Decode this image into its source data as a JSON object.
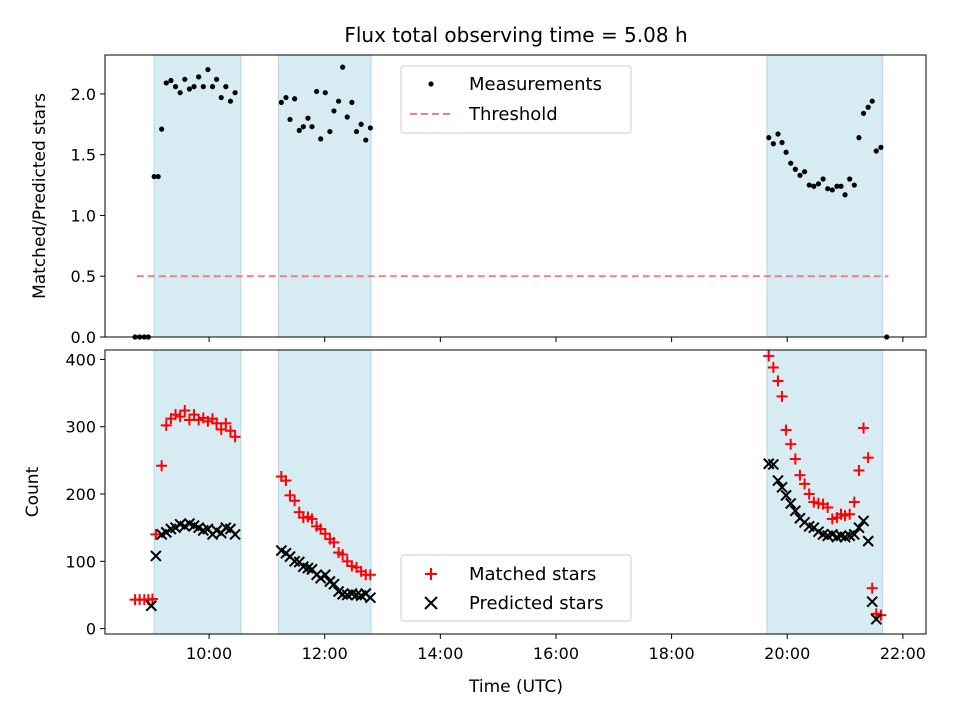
{
  "chart_data": {
    "title": "Flux total observing time = 5.08 h",
    "xlabel": "Time (UTC)",
    "x_ticks": [
      10,
      12,
      14,
      16,
      18,
      20,
      22
    ],
    "x_tick_labels": [
      "10:00",
      "12:00",
      "14:00",
      "16:00",
      "18:00",
      "20:00",
      "22:00"
    ],
    "xlim": [
      8.2,
      22.4
    ],
    "shaded_intervals": [
      [
        9.05,
        10.55
      ],
      [
        11.2,
        12.8
      ],
      [
        19.65,
        21.65
      ]
    ],
    "top": {
      "type": "scatter",
      "ylabel": "Matched/Predicted stars",
      "ylim": [
        0,
        2.32
      ],
      "y_ticks": [
        0,
        0.5,
        1.0,
        1.5,
        2.0
      ],
      "y_tick_labels": [
        "0.0",
        "0.5",
        "1.0",
        "1.5",
        "2.0"
      ],
      "legend": [
        "Measurements",
        "Threshold"
      ],
      "threshold": {
        "value": 0.5,
        "x_range": [
          8.75,
          21.75
        ],
        "color": "#f08080"
      },
      "measurements": [
        [
          8.72,
          0.0
        ],
        [
          8.8,
          0.0
        ],
        [
          8.88,
          0.0
        ],
        [
          8.95,
          0.0
        ],
        [
          9.05,
          1.32
        ],
        [
          9.12,
          1.32
        ],
        [
          9.18,
          1.71
        ],
        [
          9.26,
          2.09
        ],
        [
          9.34,
          2.11
        ],
        [
          9.42,
          2.06
        ],
        [
          9.5,
          2.01
        ],
        [
          9.58,
          2.12
        ],
        [
          9.66,
          2.04
        ],
        [
          9.74,
          2.06
        ],
        [
          9.82,
          2.14
        ],
        [
          9.9,
          2.06
        ],
        [
          9.98,
          2.2
        ],
        [
          10.06,
          2.06
        ],
        [
          10.13,
          2.12
        ],
        [
          10.21,
          1.97
        ],
        [
          10.29,
          2.06
        ],
        [
          10.37,
          1.94
        ],
        [
          10.45,
          2.01
        ],
        [
          11.25,
          1.93
        ],
        [
          11.33,
          1.97
        ],
        [
          11.4,
          1.79
        ],
        [
          11.48,
          1.96
        ],
        [
          11.56,
          1.7
        ],
        [
          11.63,
          1.73
        ],
        [
          11.71,
          1.8
        ],
        [
          11.78,
          1.73
        ],
        [
          11.86,
          2.02
        ],
        [
          11.93,
          1.63
        ],
        [
          12.01,
          2.01
        ],
        [
          12.09,
          1.69
        ],
        [
          12.16,
          1.86
        ],
        [
          12.24,
          1.94
        ],
        [
          12.31,
          2.22
        ],
        [
          12.39,
          1.81
        ],
        [
          12.47,
          1.93
        ],
        [
          12.55,
          1.69
        ],
        [
          12.63,
          1.75
        ],
        [
          12.71,
          1.62
        ],
        [
          12.79,
          1.72
        ],
        [
          19.68,
          1.64
        ],
        [
          19.76,
          1.59
        ],
        [
          19.84,
          1.67
        ],
        [
          19.91,
          1.6
        ],
        [
          19.98,
          1.52
        ],
        [
          20.06,
          1.43
        ],
        [
          20.14,
          1.38
        ],
        [
          20.22,
          1.33
        ],
        [
          20.3,
          1.36
        ],
        [
          20.38,
          1.25
        ],
        [
          20.46,
          1.24
        ],
        [
          20.54,
          1.26
        ],
        [
          20.62,
          1.3
        ],
        [
          20.7,
          1.22
        ],
        [
          20.78,
          1.21
        ],
        [
          20.86,
          1.24
        ],
        [
          20.93,
          1.24
        ],
        [
          21.0,
          1.17
        ],
        [
          21.08,
          1.3
        ],
        [
          21.16,
          1.25
        ],
        [
          21.24,
          1.64
        ],
        [
          21.32,
          1.84
        ],
        [
          21.4,
          1.89
        ],
        [
          21.47,
          1.94
        ],
        [
          21.54,
          1.53
        ],
        [
          21.62,
          1.56
        ],
        [
          21.72,
          0.0
        ]
      ]
    },
    "bottom": {
      "type": "scatter",
      "ylabel": "Count",
      "ylim": [
        -8,
        414
      ],
      "y_ticks": [
        0,
        100,
        200,
        300,
        400
      ],
      "y_tick_labels": [
        "0",
        "100",
        "200",
        "300",
        "400"
      ],
      "legend": [
        "Matched stars",
        "Predicted stars"
      ],
      "series": [
        {
          "name": "Matched stars",
          "marker": "plus",
          "color": "#ff0000",
          "points": [
            [
              8.72,
              43
            ],
            [
              8.8,
              43
            ],
            [
              8.88,
              43
            ],
            [
              8.95,
              43
            ],
            [
              9.02,
              44
            ],
            [
              9.08,
              140
            ],
            [
              9.18,
              242
            ],
            [
              9.26,
              302
            ],
            [
              9.34,
              312
            ],
            [
              9.42,
              318
            ],
            [
              9.5,
              315
            ],
            [
              9.58,
              324
            ],
            [
              9.66,
              310
            ],
            [
              9.74,
              318
            ],
            [
              9.82,
              310
            ],
            [
              9.9,
              313
            ],
            [
              9.98,
              308
            ],
            [
              10.06,
              312
            ],
            [
              10.13,
              305
            ],
            [
              10.21,
              296
            ],
            [
              10.29,
              305
            ],
            [
              10.37,
              294
            ],
            [
              10.45,
              285
            ],
            [
              11.25,
              226
            ],
            [
              11.33,
              220
            ],
            [
              11.4,
              198
            ],
            [
              11.48,
              190
            ],
            [
              11.56,
              173
            ],
            [
              11.63,
              165
            ],
            [
              11.71,
              166
            ],
            [
              11.78,
              163
            ],
            [
              11.86,
              152
            ],
            [
              11.93,
              148
            ],
            [
              12.01,
              141
            ],
            [
              12.09,
              133
            ],
            [
              12.16,
              128
            ],
            [
              12.24,
              113
            ],
            [
              12.31,
              110
            ],
            [
              12.39,
              100
            ],
            [
              12.47,
              93
            ],
            [
              12.55,
              91
            ],
            [
              12.63,
              85
            ],
            [
              12.71,
              80
            ],
            [
              12.79,
              80
            ],
            [
              19.68,
              405
            ],
            [
              19.76,
              388
            ],
            [
              19.84,
              368
            ],
            [
              19.91,
              345
            ],
            [
              19.98,
              295
            ],
            [
              20.06,
              274
            ],
            [
              20.14,
              252
            ],
            [
              20.22,
              228
            ],
            [
              20.3,
              215
            ],
            [
              20.38,
              200
            ],
            [
              20.46,
              188
            ],
            [
              20.54,
              186
            ],
            [
              20.62,
              185
            ],
            [
              20.7,
              180
            ],
            [
              20.78,
              163
            ],
            [
              20.86,
              165
            ],
            [
              20.93,
              170
            ],
            [
              21.0,
              168
            ],
            [
              21.08,
              170
            ],
            [
              21.16,
              188
            ],
            [
              21.24,
              235
            ],
            [
              21.32,
              298
            ],
            [
              21.4,
              254
            ],
            [
              21.47,
              60
            ],
            [
              21.54,
              22
            ],
            [
              21.62,
              20
            ]
          ]
        },
        {
          "name": "Predicted stars",
          "marker": "x",
          "color": "#000000",
          "points": [
            [
              9.0,
              34
            ],
            [
              9.08,
              108
            ],
            [
              9.18,
              140
            ],
            [
              9.26,
              143
            ],
            [
              9.34,
              148
            ],
            [
              9.42,
              150
            ],
            [
              9.5,
              155
            ],
            [
              9.58,
              152
            ],
            [
              9.66,
              156
            ],
            [
              9.74,
              153
            ],
            [
              9.82,
              150
            ],
            [
              9.9,
              146
            ],
            [
              9.98,
              148
            ],
            [
              10.06,
              140
            ],
            [
              10.13,
              146
            ],
            [
              10.21,
              142
            ],
            [
              10.29,
              150
            ],
            [
              10.37,
              148
            ],
            [
              10.45,
              140
            ],
            [
              11.25,
              116
            ],
            [
              11.33,
              112
            ],
            [
              11.4,
              107
            ],
            [
              11.48,
              100
            ],
            [
              11.56,
              99
            ],
            [
              11.63,
              92
            ],
            [
              11.71,
              90
            ],
            [
              11.78,
              88
            ],
            [
              11.86,
              80
            ],
            [
              11.93,
              75
            ],
            [
              12.01,
              80
            ],
            [
              12.09,
              70
            ],
            [
              12.16,
              66
            ],
            [
              12.24,
              55
            ],
            [
              12.31,
              51
            ],
            [
              12.39,
              50
            ],
            [
              12.47,
              52
            ],
            [
              12.55,
              50
            ],
            [
              12.63,
              49
            ],
            [
              12.71,
              52
            ],
            [
              12.79,
              46
            ],
            [
              19.68,
              245
            ],
            [
              19.76,
              244
            ],
            [
              19.84,
              220
            ],
            [
              19.91,
              210
            ],
            [
              19.98,
              198
            ],
            [
              20.06,
              186
            ],
            [
              20.14,
              175
            ],
            [
              20.22,
              164
            ],
            [
              20.3,
              158
            ],
            [
              20.38,
              152
            ],
            [
              20.46,
              150
            ],
            [
              20.54,
              144
            ],
            [
              20.62,
              140
            ],
            [
              20.7,
              138
            ],
            [
              20.78,
              140
            ],
            [
              20.86,
              136
            ],
            [
              20.93,
              138
            ],
            [
              21.0,
              136
            ],
            [
              21.08,
              138
            ],
            [
              21.16,
              140
            ],
            [
              21.24,
              150
            ],
            [
              21.32,
              160
            ],
            [
              21.4,
              130
            ],
            [
              21.47,
              40
            ],
            [
              21.54,
              14
            ]
          ]
        }
      ]
    }
  }
}
